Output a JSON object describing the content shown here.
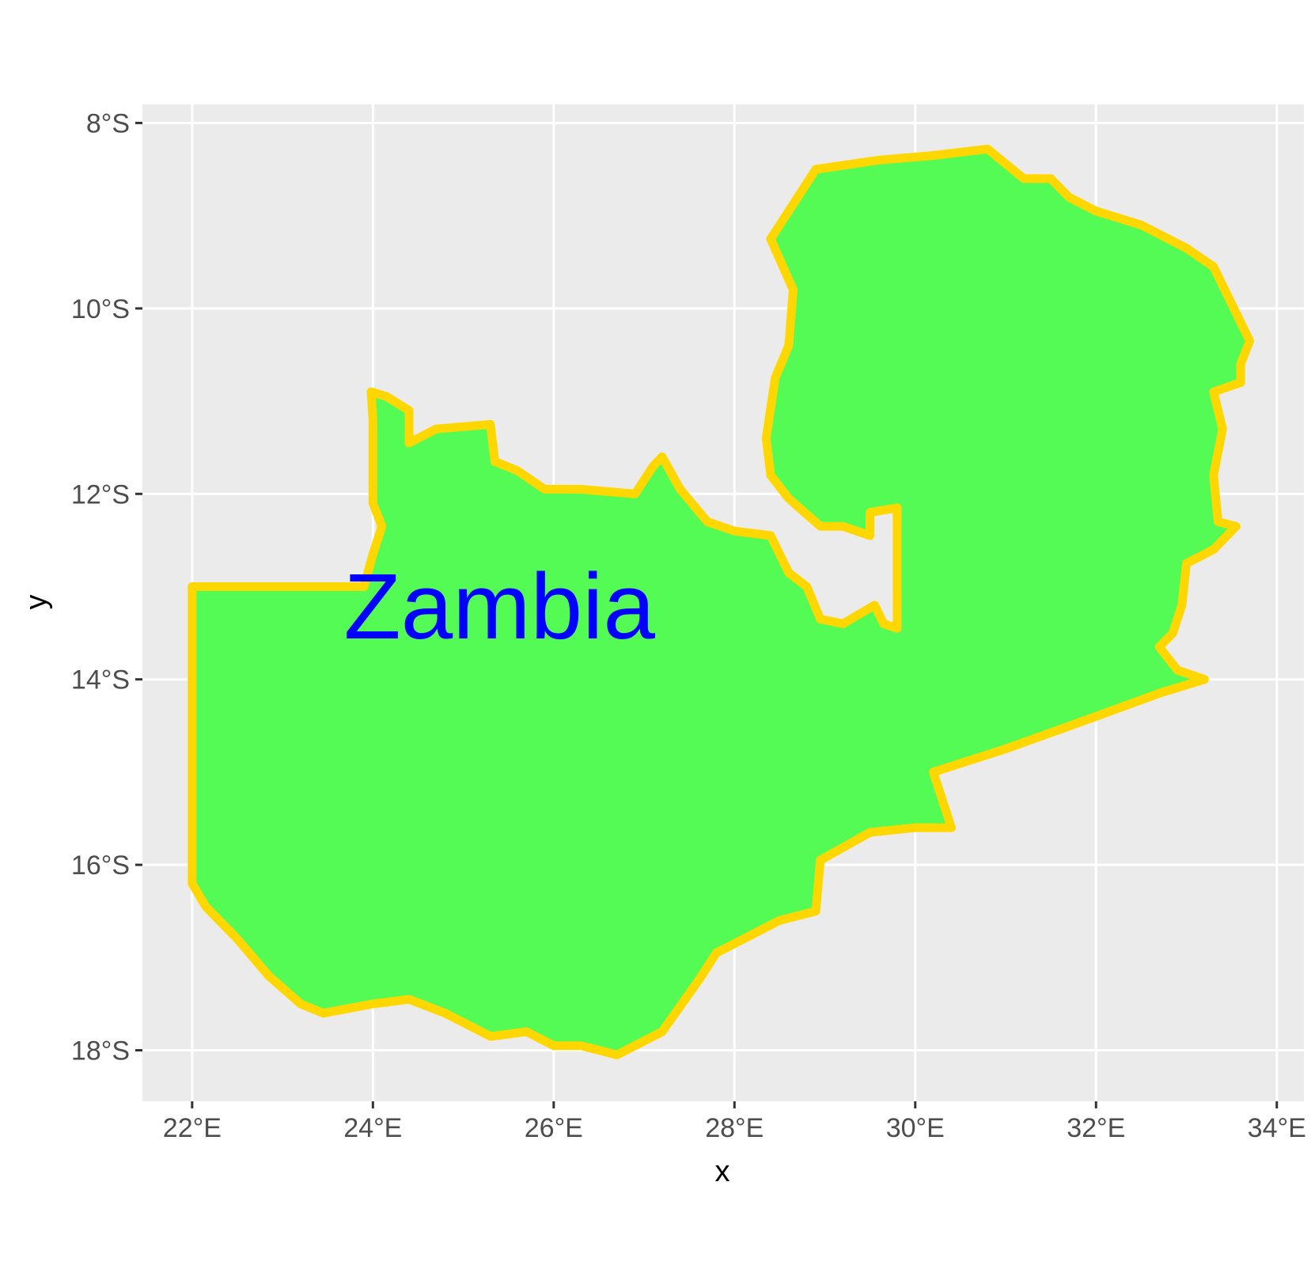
{
  "chart_data": {
    "type": "map",
    "xlabel": "x",
    "ylabel": "y",
    "xlim": [
      21.45,
      34.3
    ],
    "ylim": [
      -18.55,
      -7.8
    ],
    "grid": true,
    "x_ticks": [
      {
        "value": 22,
        "label": "22°E"
      },
      {
        "value": 24,
        "label": "24°E"
      },
      {
        "value": 26,
        "label": "26°E"
      },
      {
        "value": 28,
        "label": "28°E"
      },
      {
        "value": 30,
        "label": "30°E"
      },
      {
        "value": 32,
        "label": "32°E"
      },
      {
        "value": 34,
        "label": "34°E"
      }
    ],
    "y_ticks": [
      {
        "value": -8,
        "label": "8°S"
      },
      {
        "value": -10,
        "label": "10°S"
      },
      {
        "value": -12,
        "label": "12°S"
      },
      {
        "value": -14,
        "label": "14°S"
      },
      {
        "value": -16,
        "label": "16°S"
      },
      {
        "value": -18,
        "label": "18°S"
      }
    ],
    "regions": [
      {
        "name": "Zambia",
        "fill_color": "#55fb55",
        "border_color": "#ffd700",
        "label_color": "#0000ff",
        "label_position": [
          25.4,
          -13.2
        ],
        "boundary": [
          [
            22.0,
            -13.0
          ],
          [
            23.9,
            -13.0
          ],
          [
            24.0,
            -12.65
          ],
          [
            24.1,
            -12.35
          ],
          [
            24.0,
            -12.1
          ],
          [
            24.0,
            -11.6
          ],
          [
            24.0,
            -11.2
          ],
          [
            23.98,
            -10.9
          ],
          [
            24.15,
            -10.95
          ],
          [
            24.4,
            -11.1
          ],
          [
            24.4,
            -11.45
          ],
          [
            24.7,
            -11.3
          ],
          [
            25.3,
            -11.25
          ],
          [
            25.35,
            -11.65
          ],
          [
            25.6,
            -11.75
          ],
          [
            25.9,
            -11.95
          ],
          [
            26.3,
            -11.95
          ],
          [
            26.9,
            -12.0
          ],
          [
            27.1,
            -11.7
          ],
          [
            27.2,
            -11.6
          ],
          [
            27.4,
            -11.95
          ],
          [
            27.7,
            -12.3
          ],
          [
            28.0,
            -12.4
          ],
          [
            28.4,
            -12.45
          ],
          [
            28.6,
            -12.85
          ],
          [
            28.8,
            -13.0
          ],
          [
            28.95,
            -13.35
          ],
          [
            29.2,
            -13.4
          ],
          [
            29.55,
            -13.2
          ],
          [
            29.65,
            -13.4
          ],
          [
            29.8,
            -13.45
          ],
          [
            29.8,
            -12.15
          ],
          [
            29.5,
            -12.2
          ],
          [
            29.5,
            -12.45
          ],
          [
            29.2,
            -12.35
          ],
          [
            28.95,
            -12.35
          ],
          [
            28.6,
            -12.05
          ],
          [
            28.4,
            -11.8
          ],
          [
            28.35,
            -11.4
          ],
          [
            28.45,
            -10.75
          ],
          [
            28.6,
            -10.4
          ],
          [
            28.65,
            -9.8
          ],
          [
            28.4,
            -9.25
          ],
          [
            28.9,
            -8.5
          ],
          [
            29.6,
            -8.4
          ],
          [
            30.2,
            -8.35
          ],
          [
            30.8,
            -8.28
          ],
          [
            31.2,
            -8.6
          ],
          [
            31.5,
            -8.6
          ],
          [
            31.7,
            -8.8
          ],
          [
            32.0,
            -8.95
          ],
          [
            32.5,
            -9.1
          ],
          [
            33.0,
            -9.35
          ],
          [
            33.3,
            -9.55
          ],
          [
            33.45,
            -9.85
          ],
          [
            33.7,
            -10.35
          ],
          [
            33.6,
            -10.6
          ],
          [
            33.6,
            -10.8
          ],
          [
            33.3,
            -10.9
          ],
          [
            33.4,
            -11.3
          ],
          [
            33.3,
            -11.8
          ],
          [
            33.35,
            -12.3
          ],
          [
            33.55,
            -12.35
          ],
          [
            33.3,
            -12.6
          ],
          [
            33.0,
            -12.75
          ],
          [
            32.95,
            -13.2
          ],
          [
            32.85,
            -13.5
          ],
          [
            32.7,
            -13.65
          ],
          [
            32.9,
            -13.9
          ],
          [
            33.2,
            -14.0
          ],
          [
            32.7,
            -14.15
          ],
          [
            32.0,
            -14.4
          ],
          [
            31.0,
            -14.75
          ],
          [
            30.2,
            -15.0
          ],
          [
            30.3,
            -15.3
          ],
          [
            30.4,
            -15.6
          ],
          [
            30.0,
            -15.6
          ],
          [
            29.5,
            -15.65
          ],
          [
            28.95,
            -15.95
          ],
          [
            28.9,
            -16.5
          ],
          [
            28.5,
            -16.6
          ],
          [
            27.8,
            -16.95
          ],
          [
            27.6,
            -17.25
          ],
          [
            27.2,
            -17.8
          ],
          [
            26.9,
            -17.95
          ],
          [
            26.7,
            -18.05
          ],
          [
            26.3,
            -17.95
          ],
          [
            26.0,
            -17.95
          ],
          [
            25.7,
            -17.8
          ],
          [
            25.3,
            -17.85
          ],
          [
            24.8,
            -17.6
          ],
          [
            24.4,
            -17.45
          ],
          [
            24.0,
            -17.5
          ],
          [
            23.45,
            -17.6
          ],
          [
            23.2,
            -17.5
          ],
          [
            22.85,
            -17.2
          ],
          [
            22.5,
            -16.8
          ],
          [
            22.15,
            -16.45
          ],
          [
            22.0,
            -16.2
          ],
          [
            22.0,
            -13.0
          ]
        ]
      }
    ]
  }
}
